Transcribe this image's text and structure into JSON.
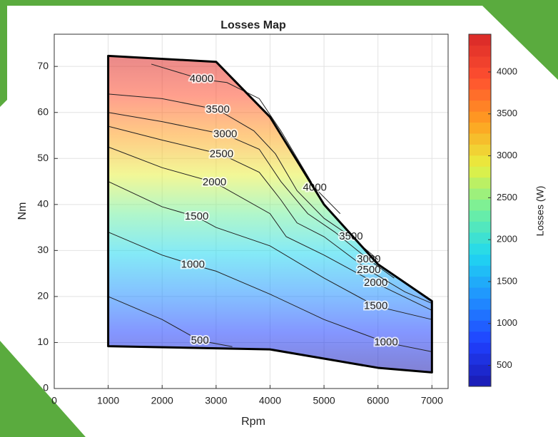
{
  "chart_data": {
    "type": "contour",
    "title": "Losses Map",
    "xlabel": "Rpm",
    "ylabel": "Nm",
    "xlim": [
      0,
      7300
    ],
    "ylim": [
      0,
      77
    ],
    "xticks": [
      0,
      1000,
      2000,
      3000,
      4000,
      5000,
      6000,
      7000
    ],
    "yticks": [
      0,
      10,
      20,
      30,
      40,
      50,
      60,
      70
    ],
    "grid": true,
    "colorbar": {
      "label": "Losses (W)",
      "clim": [
        250,
        4450
      ],
      "ticks": [
        500,
        1000,
        1500,
        2000,
        2500,
        3000,
        3500,
        4000
      ],
      "colormap": [
        "#1a1ab0",
        "#2040ff",
        "#2090ff",
        "#20d8f0",
        "#70f0a0",
        "#e8f040",
        "#ffa020",
        "#ff5030",
        "#d82828"
      ]
    },
    "boundary": {
      "x": [
        1000,
        3000,
        4000,
        5000,
        6000,
        7000,
        7000,
        6000,
        4000,
        1000
      ],
      "y": [
        72.3,
        71,
        59,
        40,
        27,
        19,
        3.5,
        4.5,
        8.5,
        9.2
      ]
    },
    "series": [
      {
        "level": 500,
        "x": [
          1000,
          2000,
          2700,
          3300
        ],
        "y": [
          20,
          15,
          10.4,
          9.1
        ]
      },
      {
        "level": 1000,
        "x": [
          1000,
          2000,
          2570,
          3000,
          4000,
          5000,
          6150,
          7000
        ],
        "y": [
          34,
          29,
          26.9,
          25.5,
          20.5,
          15,
          10,
          8
        ]
      },
      {
        "level": 1500,
        "x": [
          1000,
          2000,
          2640,
          3000,
          4000,
          5000,
          5960,
          7000
        ],
        "y": [
          45,
          39.5,
          37.3,
          35,
          31,
          24,
          17.9,
          15
        ]
      },
      {
        "level": 2000,
        "x": [
          1000,
          2000,
          2970,
          4000,
          4300,
          5000,
          5960,
          7000
        ],
        "y": [
          52.5,
          48,
          44.8,
          38,
          33,
          29,
          22.9,
          17
        ]
      },
      {
        "level": 2500,
        "x": [
          1000,
          2000,
          3100,
          3800,
          4200,
          4500,
          5000,
          5830,
          6500,
          7000
        ],
        "y": [
          57,
          54,
          50.9,
          47,
          41,
          36,
          33,
          25.7,
          21,
          18.5
        ]
      },
      {
        "level": 3000,
        "x": [
          1000,
          2000,
          3170,
          3800,
          4200,
          4700,
          5200,
          5830,
          6300
        ],
        "y": [
          60,
          58,
          55.2,
          52,
          45,
          38,
          34,
          28,
          24
        ]
      },
      {
        "level": 3500,
        "x": [
          1000,
          2000,
          3030,
          3700,
          4100,
          4500,
          5000,
          5500,
          6000
        ],
        "y": [
          64,
          63,
          60.6,
          56,
          51,
          43,
          37,
          33,
          28
        ]
      },
      {
        "level": 4000,
        "x": [
          1800,
          2730,
          3200,
          3800,
          4200,
          4830,
          5300
        ],
        "y": [
          70.5,
          67.2,
          66.5,
          63,
          56,
          43.6,
          38
        ]
      }
    ]
  }
}
